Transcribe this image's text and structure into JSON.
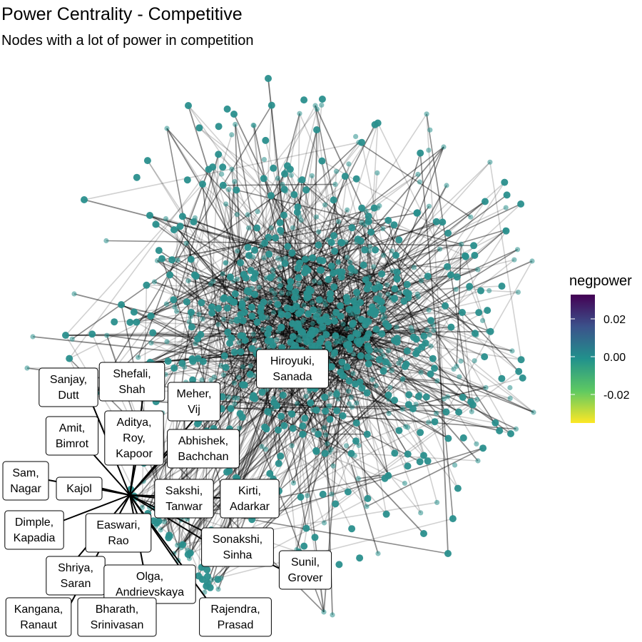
{
  "chart_data": {
    "type": "network",
    "title": "Power Centrality - Competitive",
    "subtitle": "Nodes with a lot of power in competition",
    "legend": {
      "title": "negpower",
      "placement": "right",
      "ticks": [
        "0.02",
        "0.00",
        "-0.02"
      ],
      "gradient_colors": [
        "#440154",
        "#3b528b",
        "#21918c",
        "#5ec962",
        "#fde725"
      ]
    },
    "node_color": "#2a8f8d",
    "edge_color": "#000000",
    "labeled_nodes": [
      {
        "name": "Hiroyuki, Sanada",
        "lines": [
          "Hiroyuki,",
          "Sanada"
        ]
      },
      {
        "name": "Sanjay, Dutt",
        "lines": [
          "Sanjay,",
          "Dutt"
        ]
      },
      {
        "name": "Shefali, Shah",
        "lines": [
          "Shefali,",
          "Shah"
        ]
      },
      {
        "name": "Meher, Vij",
        "lines": [
          "Meher,",
          "Vij"
        ]
      },
      {
        "name": "Amit, Bimrot",
        "lines": [
          "Amit,",
          "Bimrot"
        ]
      },
      {
        "name": "Aditya, Roy, Kapoor",
        "lines": [
          "Aditya,",
          "Roy,",
          "Kapoor"
        ]
      },
      {
        "name": "Abhishek, Bachchan",
        "lines": [
          "Abhishek,",
          "Bachchan"
        ]
      },
      {
        "name": "Sam, Nagar",
        "lines": [
          "Sam,",
          "Nagar"
        ]
      },
      {
        "name": "Kajol",
        "lines": [
          "Kajol"
        ]
      },
      {
        "name": "Sakshi, Tanwar",
        "lines": [
          "Sakshi,",
          "Tanwar"
        ]
      },
      {
        "name": "Kirti, Adarkar",
        "lines": [
          "Kirti,",
          "Adarkar"
        ]
      },
      {
        "name": "Dimple, Kapadia",
        "lines": [
          "Dimple,",
          "Kapadia"
        ]
      },
      {
        "name": "Easwari, Rao",
        "lines": [
          "Easwari,",
          "Rao"
        ]
      },
      {
        "name": "Sonakshi, Sinha",
        "lines": [
          "Sonakshi,",
          "Sinha"
        ]
      },
      {
        "name": "Sunil, Grover",
        "lines": [
          "Sunil,",
          "Grover"
        ]
      },
      {
        "name": "Shriya, Saran",
        "lines": [
          "Shriya,",
          "Saran"
        ]
      },
      {
        "name": "Olga, Andrievskaya",
        "lines": [
          "Olga,",
          "Andrievskaya"
        ]
      },
      {
        "name": "Kangana, Ranaut",
        "lines": [
          "Kangana,",
          "Ranaut"
        ]
      },
      {
        "name": "Bharath, Srinivasan",
        "lines": [
          "Bharath,",
          "Srinivasan"
        ]
      },
      {
        "name": "Rajendra, Prasad",
        "lines": [
          "Rajendra,",
          "Prasad"
        ]
      }
    ]
  }
}
